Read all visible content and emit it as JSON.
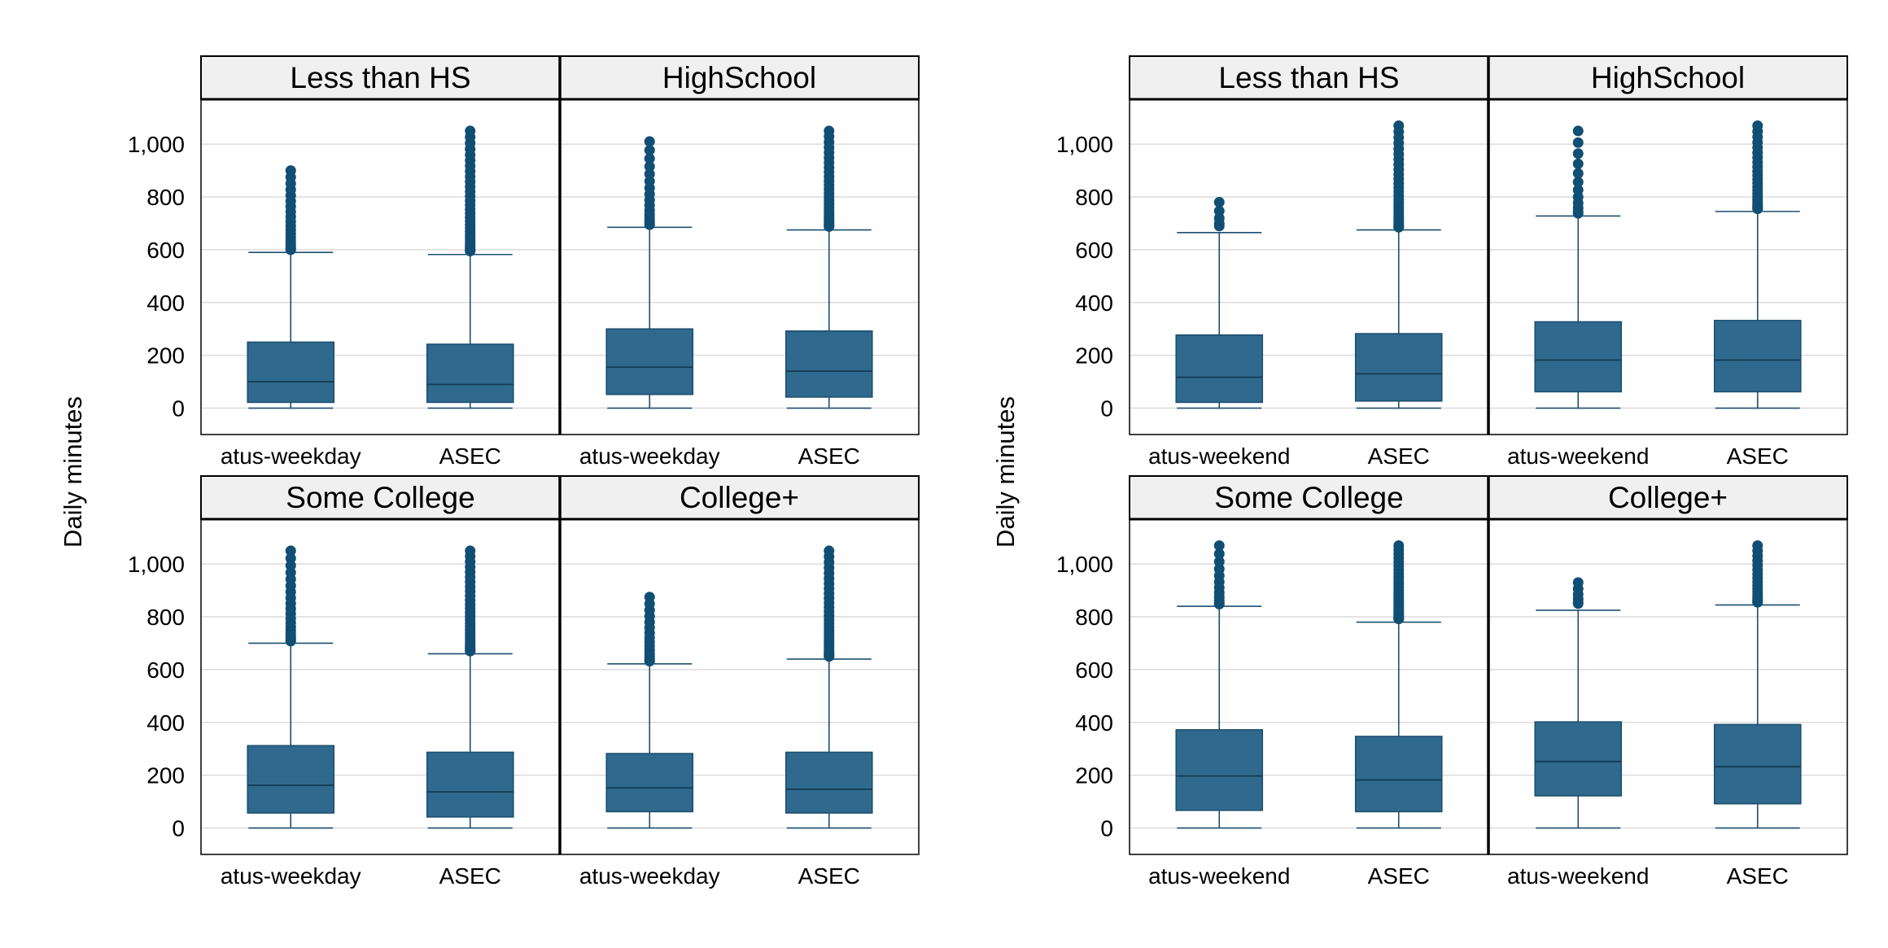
{
  "colors": {
    "box_fill": "#2f6a8e",
    "box_stroke": "#1c4f70",
    "outlier": "#114e73",
    "grid": "#dcdcdc",
    "strip_bg": "#f0f0f0"
  },
  "chart_data": [
    {
      "type": "boxplot",
      "ylabel": "Daily minutes",
      "yticks": [
        0,
        200,
        400,
        600,
        800,
        1000
      ],
      "ytick_labels": [
        "0",
        "200",
        "400",
        "600",
        "800",
        "1,000"
      ],
      "ylim": [
        -100,
        1170
      ],
      "grid": true,
      "categories": [
        "atus-weekday",
        "ASEC"
      ],
      "panels": [
        {
          "title": "Less than HS",
          "boxes": [
            {
              "category": "atus-weekday",
              "whisker_low": 0,
              "q1": 22,
              "median": 100,
              "q3": 250,
              "whisker_high": 590,
              "outliers_from": 600,
              "outliers_to": 900,
              "outlier_count": 20
            },
            {
              "category": "ASEC",
              "whisker_low": 0,
              "q1": 22,
              "median": 90,
              "q3": 242,
              "whisker_high": 582,
              "outliers_from": 595,
              "outliers_to": 1050,
              "outlier_count": 32
            }
          ]
        },
        {
          "title": "HighSchool",
          "boxes": [
            {
              "category": "atus-weekday",
              "whisker_low": 0,
              "q1": 52,
              "median": 155,
              "q3": 300,
              "whisker_high": 685,
              "outliers_from": 695,
              "outliers_to": 1010,
              "outlier_count": 16
            },
            {
              "category": "ASEC",
              "whisker_low": 0,
              "q1": 42,
              "median": 140,
              "q3": 292,
              "whisker_high": 675,
              "outliers_from": 688,
              "outliers_to": 1050,
              "outlier_count": 28
            }
          ]
        },
        {
          "title": "Some College",
          "boxes": [
            {
              "category": "atus-weekday",
              "whisker_low": 0,
              "q1": 57,
              "median": 162,
              "q3": 312,
              "whisker_high": 700,
              "outliers_from": 708,
              "outliers_to": 1050,
              "outlier_count": 20
            },
            {
              "category": "ASEC",
              "whisker_low": 0,
              "q1": 42,
              "median": 137,
              "q3": 287,
              "whisker_high": 660,
              "outliers_from": 670,
              "outliers_to": 1050,
              "outlier_count": 30
            }
          ]
        },
        {
          "title": "College+",
          "boxes": [
            {
              "category": "atus-weekday",
              "whisker_low": 0,
              "q1": 62,
              "median": 152,
              "q3": 282,
              "whisker_high": 622,
              "outliers_from": 632,
              "outliers_to": 875,
              "outlier_count": 16
            },
            {
              "category": "ASEC",
              "whisker_low": 0,
              "q1": 57,
              "median": 147,
              "q3": 287,
              "whisker_high": 640,
              "outliers_from": 650,
              "outliers_to": 1050,
              "outlier_count": 30
            }
          ]
        }
      ]
    },
    {
      "type": "boxplot",
      "ylabel": "Daily minutes",
      "yticks": [
        0,
        200,
        400,
        600,
        800,
        1000
      ],
      "ytick_labels": [
        "0",
        "200",
        "400",
        "600",
        "800",
        "1,000"
      ],
      "ylim": [
        -100,
        1170
      ],
      "grid": true,
      "categories": [
        "atus-weekend",
        "ASEC"
      ],
      "panels": [
        {
          "title": "Less than HS",
          "boxes": [
            {
              "category": "atus-weekend",
              "whisker_low": 0,
              "q1": 22,
              "median": 117,
              "q3": 277,
              "whisker_high": 665,
              "outliers_from": 690,
              "outliers_to": 780,
              "outlier_count": 5
            },
            {
              "category": "ASEC",
              "whisker_low": 0,
              "q1": 27,
              "median": 130,
              "q3": 282,
              "whisker_high": 675,
              "outliers_from": 685,
              "outliers_to": 1070,
              "outlier_count": 28
            }
          ]
        },
        {
          "title": "HighSchool",
          "boxes": [
            {
              "category": "atus-weekend",
              "whisker_low": 0,
              "q1": 62,
              "median": 182,
              "q3": 327,
              "whisker_high": 728,
              "outliers_from": 738,
              "outliers_to": 1050,
              "outlier_count": 12
            },
            {
              "category": "ASEC",
              "whisker_low": 0,
              "q1": 62,
              "median": 182,
              "q3": 332,
              "whisker_high": 745,
              "outliers_from": 755,
              "outliers_to": 1070,
              "outlier_count": 24
            }
          ]
        },
        {
          "title": "Some College",
          "boxes": [
            {
              "category": "atus-weekend",
              "whisker_low": 0,
              "q1": 67,
              "median": 197,
              "q3": 372,
              "whisker_high": 840,
              "outliers_from": 848,
              "outliers_to": 1070,
              "outlier_count": 12
            },
            {
              "category": "ASEC",
              "whisker_low": 0,
              "q1": 62,
              "median": 182,
              "q3": 347,
              "whisker_high": 780,
              "outliers_from": 792,
              "outliers_to": 1070,
              "outlier_count": 28
            }
          ]
        },
        {
          "title": "College+",
          "boxes": [
            {
              "category": "atus-weekend",
              "whisker_low": 0,
              "q1": 122,
              "median": 252,
              "q3": 402,
              "whisker_high": 825,
              "outliers_from": 850,
              "outliers_to": 930,
              "outlier_count": 6
            },
            {
              "category": "ASEC",
              "whisker_low": 0,
              "q1": 92,
              "median": 232,
              "q3": 392,
              "whisker_high": 845,
              "outliers_from": 855,
              "outliers_to": 1070,
              "outlier_count": 18
            }
          ]
        }
      ]
    }
  ]
}
